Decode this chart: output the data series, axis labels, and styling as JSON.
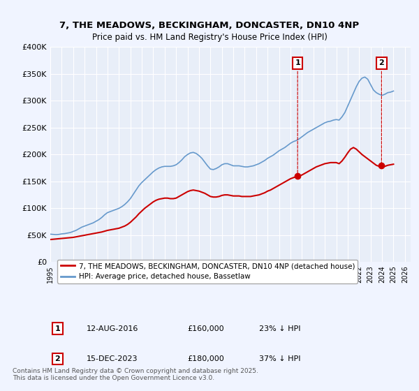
{
  "title": "7, THE MEADOWS, BECKINGHAM, DONCASTER, DN10 4NP",
  "subtitle": "Price paid vs. HM Land Registry's House Price Index (HPI)",
  "ylabel": "",
  "xlabel": "",
  "ylim": [
    0,
    400000
  ],
  "xlim_start": 1995.0,
  "xlim_end": 2026.5,
  "yticks": [
    0,
    50000,
    100000,
    150000,
    200000,
    250000,
    300000,
    350000,
    400000
  ],
  "ytick_labels": [
    "£0",
    "£50K",
    "£100K",
    "£150K",
    "£200K",
    "£250K",
    "£300K",
    "£350K",
    "£400K"
  ],
  "background_color": "#f0f4ff",
  "plot_bg": "#e8eef8",
  "red_line_color": "#cc0000",
  "blue_line_color": "#6699cc",
  "marker_color": "#cc0000",
  "grid_color": "#ffffff",
  "legend_box_color": "#ffffff",
  "legend_border_color": "#cccccc",
  "marker1_x": 2016.62,
  "marker1_y": 160000,
  "marker2_x": 2023.96,
  "marker2_y": 180000,
  "legend_label_red": "7, THE MEADOWS, BECKINGHAM, DONCASTER, DN10 4NP (detached house)",
  "legend_label_blue": "HPI: Average price, detached house, Bassetlaw",
  "table_row1": [
    "1",
    "12-AUG-2016",
    "£160,000",
    "23% ↓ HPI"
  ],
  "table_row2": [
    "2",
    "15-DEC-2023",
    "£180,000",
    "37% ↓ HPI"
  ],
  "footnote": "Contains HM Land Registry data © Crown copyright and database right 2025.\nThis data is licensed under the Open Government Licence v3.0.",
  "hpi_x": [
    1995.0,
    1995.25,
    1995.5,
    1995.75,
    1996.0,
    1996.25,
    1996.5,
    1996.75,
    1997.0,
    1997.25,
    1997.5,
    1997.75,
    1998.0,
    1998.25,
    1998.5,
    1998.75,
    1999.0,
    1999.25,
    1999.5,
    1999.75,
    2000.0,
    2000.25,
    2000.5,
    2000.75,
    2001.0,
    2001.25,
    2001.5,
    2001.75,
    2002.0,
    2002.25,
    2002.5,
    2002.75,
    2003.0,
    2003.25,
    2003.5,
    2003.75,
    2004.0,
    2004.25,
    2004.5,
    2004.75,
    2005.0,
    2005.25,
    2005.5,
    2005.75,
    2006.0,
    2006.25,
    2006.5,
    2006.75,
    2007.0,
    2007.25,
    2007.5,
    2007.75,
    2008.0,
    2008.25,
    2008.5,
    2008.75,
    2009.0,
    2009.25,
    2009.5,
    2009.75,
    2010.0,
    2010.25,
    2010.5,
    2010.75,
    2011.0,
    2011.25,
    2011.5,
    2011.75,
    2012.0,
    2012.25,
    2012.5,
    2012.75,
    2013.0,
    2013.25,
    2013.5,
    2013.75,
    2014.0,
    2014.25,
    2014.5,
    2014.75,
    2015.0,
    2015.25,
    2015.5,
    2015.75,
    2016.0,
    2016.25,
    2016.5,
    2016.75,
    2017.0,
    2017.25,
    2017.5,
    2017.75,
    2018.0,
    2018.25,
    2018.5,
    2018.75,
    2019.0,
    2019.25,
    2019.5,
    2019.75,
    2020.0,
    2020.25,
    2020.5,
    2020.75,
    2021.0,
    2021.25,
    2021.5,
    2021.75,
    2022.0,
    2022.25,
    2022.5,
    2022.75,
    2023.0,
    2023.25,
    2023.5,
    2023.75,
    2024.0,
    2024.25,
    2024.5,
    2024.75,
    2025.0
  ],
  "hpi_y": [
    52000,
    51500,
    51000,
    51500,
    52500,
    53000,
    54000,
    55000,
    57000,
    59000,
    62000,
    65000,
    67000,
    69000,
    71000,
    73000,
    76000,
    79000,
    83000,
    88000,
    92000,
    94000,
    96000,
    98000,
    100000,
    103000,
    107000,
    112000,
    118000,
    126000,
    134000,
    142000,
    148000,
    153000,
    158000,
    163000,
    168000,
    172000,
    175000,
    177000,
    178000,
    178000,
    178000,
    179000,
    181000,
    185000,
    190000,
    196000,
    200000,
    203000,
    204000,
    202000,
    198000,
    193000,
    186000,
    179000,
    173000,
    172000,
    174000,
    177000,
    181000,
    183000,
    183000,
    181000,
    179000,
    179000,
    179000,
    178000,
    177000,
    177000,
    178000,
    179000,
    181000,
    183000,
    186000,
    189000,
    193000,
    196000,
    199000,
    203000,
    207000,
    210000,
    213000,
    217000,
    221000,
    224000,
    226000,
    229000,
    233000,
    237000,
    241000,
    244000,
    247000,
    250000,
    253000,
    256000,
    259000,
    261000,
    262000,
    264000,
    265000,
    264000,
    270000,
    278000,
    290000,
    302000,
    314000,
    326000,
    336000,
    342000,
    344000,
    340000,
    330000,
    320000,
    315000,
    312000,
    310000,
    312000,
    315000,
    316000,
    318000
  ],
  "price_x": [
    1995.0,
    1995.25,
    1995.5,
    1995.75,
    1996.0,
    1996.25,
    1996.5,
    1996.75,
    1997.0,
    1997.25,
    1997.5,
    1997.75,
    1998.0,
    1998.25,
    1998.5,
    1998.75,
    1999.0,
    1999.25,
    1999.5,
    1999.75,
    2000.0,
    2000.25,
    2000.5,
    2000.75,
    2001.0,
    2001.25,
    2001.5,
    2001.75,
    2002.0,
    2002.25,
    2002.5,
    2002.75,
    2003.0,
    2003.25,
    2003.5,
    2003.75,
    2004.0,
    2004.25,
    2004.5,
    2004.75,
    2005.0,
    2005.25,
    2005.5,
    2005.75,
    2006.0,
    2006.25,
    2006.5,
    2006.75,
    2007.0,
    2007.25,
    2007.5,
    2007.75,
    2008.0,
    2008.25,
    2008.5,
    2008.75,
    2009.0,
    2009.25,
    2009.5,
    2009.75,
    2010.0,
    2010.25,
    2010.5,
    2010.75,
    2011.0,
    2011.25,
    2011.5,
    2011.75,
    2012.0,
    2012.25,
    2012.5,
    2012.75,
    2013.0,
    2013.25,
    2013.5,
    2013.75,
    2014.0,
    2014.25,
    2014.5,
    2014.75,
    2015.0,
    2015.25,
    2015.5,
    2015.75,
    2016.0,
    2016.25,
    2016.5,
    2016.75,
    2017.0,
    2017.25,
    2017.5,
    2017.75,
    2018.0,
    2018.25,
    2018.5,
    2018.75,
    2019.0,
    2019.25,
    2019.5,
    2019.75,
    2020.0,
    2020.25,
    2020.5,
    2020.75,
    2021.0,
    2021.25,
    2021.5,
    2021.75,
    2022.0,
    2022.25,
    2022.5,
    2022.75,
    2023.0,
    2023.25,
    2023.5,
    2023.75,
    2024.0,
    2024.25,
    2024.5,
    2024.75,
    2025.0
  ],
  "price_y": [
    42000,
    42500,
    43000,
    43500,
    44000,
    44500,
    45000,
    45500,
    46000,
    47000,
    48000,
    49000,
    50000,
    51000,
    52000,
    53000,
    54000,
    55000,
    56000,
    57500,
    59000,
    60000,
    61000,
    62000,
    63000,
    65000,
    67000,
    70000,
    74000,
    79000,
    84000,
    90000,
    95000,
    100000,
    104000,
    108000,
    112000,
    115000,
    117000,
    118000,
    119000,
    119000,
    118000,
    118000,
    119000,
    122000,
    125000,
    128000,
    131000,
    133000,
    134000,
    133000,
    132000,
    130000,
    128000,
    125000,
    122000,
    121000,
    121000,
    122000,
    124000,
    125000,
    125000,
    124000,
    123000,
    123000,
    123000,
    122000,
    122000,
    122000,
    122000,
    123000,
    124000,
    125000,
    127000,
    129000,
    132000,
    134000,
    137000,
    140000,
    143000,
    146000,
    149000,
    152000,
    155000,
    157000,
    159000,
    160000,
    162000,
    165000,
    168000,
    171000,
    174000,
    177000,
    179000,
    181000,
    183000,
    184000,
    185000,
    185000,
    185000,
    183000,
    188000,
    195000,
    203000,
    210000,
    213000,
    210000,
    205000,
    200000,
    196000,
    192000,
    188000,
    184000,
    180000,
    178000,
    177000,
    178000,
    180000,
    181000,
    182000
  ]
}
